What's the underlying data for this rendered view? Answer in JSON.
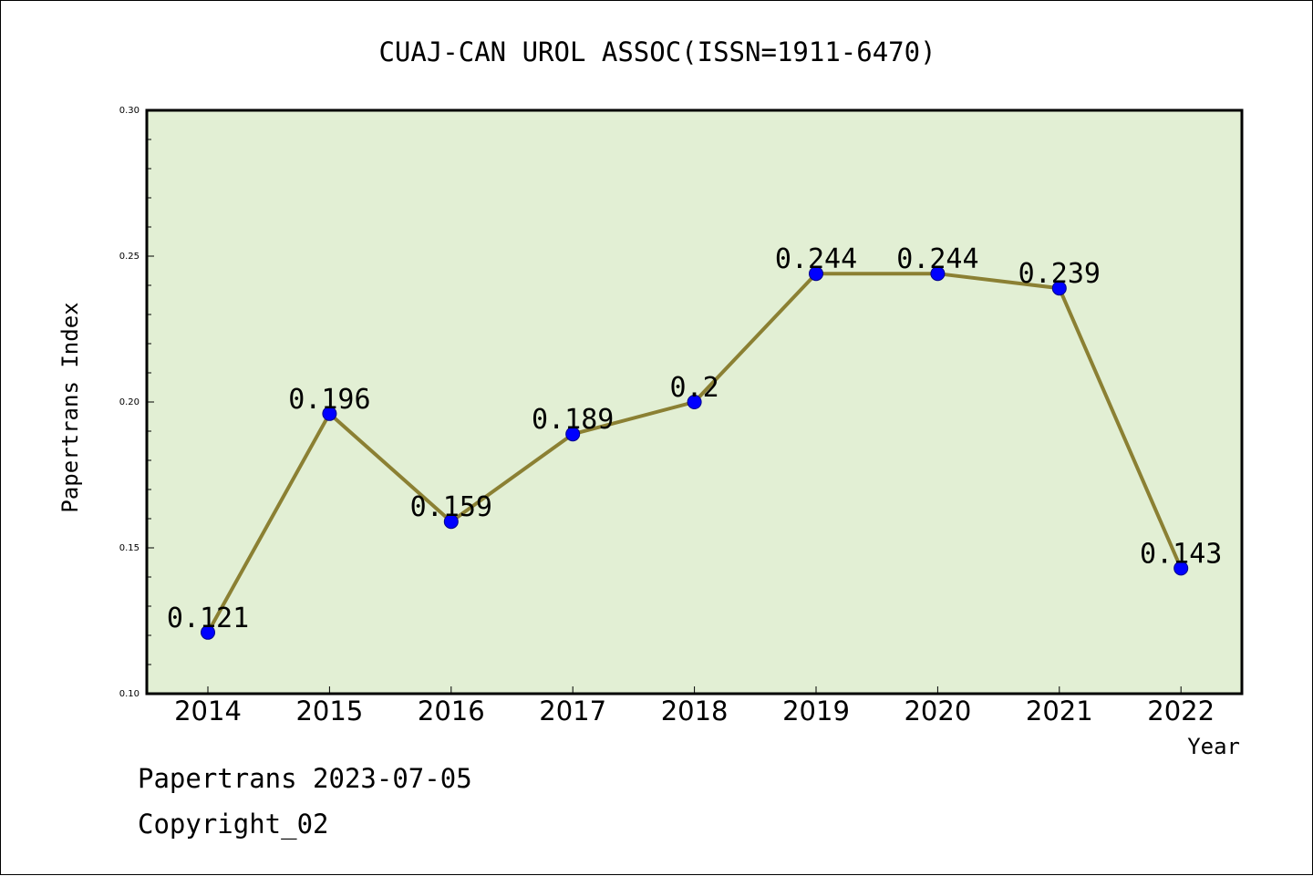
{
  "chart_data": {
    "type": "line",
    "title": "CUAJ-CAN UROL ASSOC(ISSN=1911-6470)",
    "xlabel": "Year",
    "ylabel": "Papertrans Index",
    "categories": [
      "2014",
      "2015",
      "2016",
      "2017",
      "2018",
      "2019",
      "2020",
      "2021",
      "2022"
    ],
    "values": [
      0.121,
      0.196,
      0.159,
      0.189,
      0.2,
      0.244,
      0.244,
      0.239,
      0.143
    ],
    "value_labels": [
      "0.121",
      "0.196",
      "0.159",
      "0.189",
      "0.2",
      "0.244",
      "0.244",
      "0.239",
      "0.143"
    ],
    "ylim": [
      0.1,
      0.3
    ],
    "yticks": [
      "0.10",
      "0.15",
      "0.20",
      "0.25",
      "0.30"
    ],
    "grid": false,
    "colors": {
      "plot_background": "#e2efd4",
      "line": "#8b8033",
      "marker": "#0000ff"
    }
  },
  "footer": {
    "line1": "Papertrans 2023-07-05",
    "line2": "Copyright_02"
  }
}
